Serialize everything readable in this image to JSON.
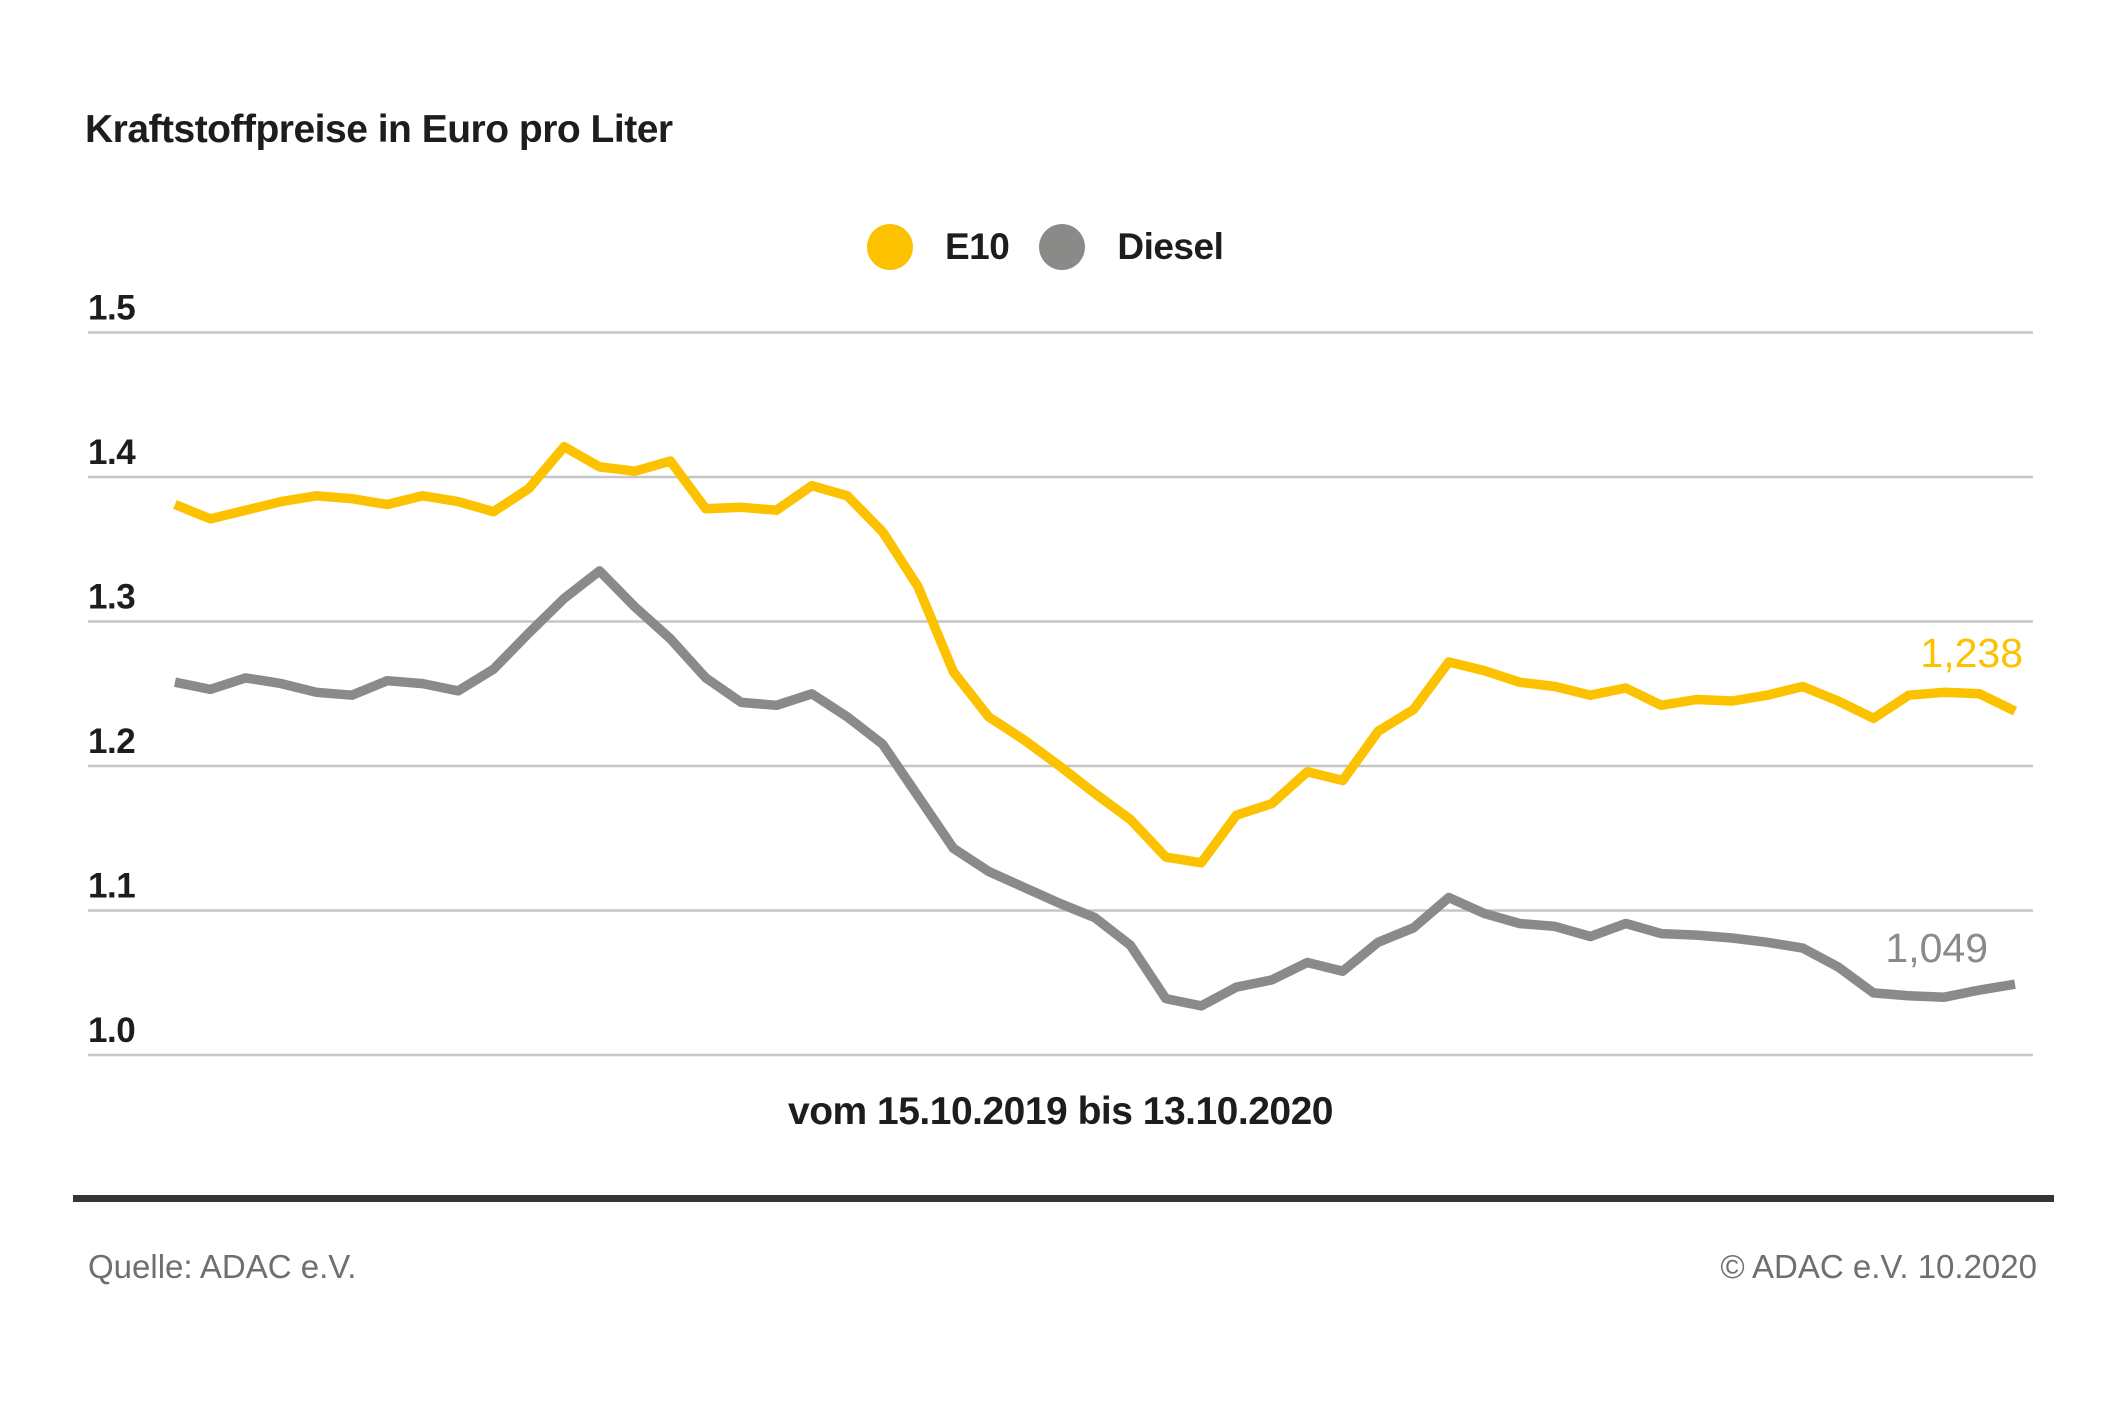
{
  "title": "Kraftstoffpreise in Euro pro Liter",
  "legend": [
    {
      "label": "E10",
      "color": "#fcc200"
    },
    {
      "label": "Diesel",
      "color": "#8a8a89"
    }
  ],
  "footer": {
    "source": "Quelle: ADAC e.V.",
    "copyright": "© ADAC e.V. 10.2020"
  },
  "chart_data": {
    "type": "line",
    "title": "Kraftstoffpreise in Euro pro Liter",
    "xlabel": "vom 15.10.2019 bis 13.10.2020",
    "ylabel": "Euro pro Liter",
    "ylim": [
      1.0,
      1.5
    ],
    "yticks": [
      1.0,
      1.1,
      1.2,
      1.3,
      1.4,
      1.5
    ],
    "ytick_labels": [
      "1.0",
      "1.1",
      "1.2",
      "1.3",
      "1.4",
      "1.5"
    ],
    "grid": "horizontal",
    "legend_position": "top-center",
    "x_start": "15.10.2019",
    "x_end": "13.10.2020",
    "x_interval": "weekly",
    "gridline_color": "#c6c6c6",
    "series": [
      {
        "name": "E10",
        "color": "#fcc200",
        "end_label": "1,238",
        "end_value": 1.238,
        "values": [
          1.381,
          1.371,
          1.377,
          1.383,
          1.387,
          1.385,
          1.381,
          1.387,
          1.383,
          1.376,
          1.392,
          1.421,
          1.407,
          1.404,
          1.411,
          1.378,
          1.379,
          1.377,
          1.394,
          1.387,
          1.362,
          1.324,
          1.265,
          1.234,
          1.218,
          1.2,
          1.181,
          1.163,
          1.137,
          1.133,
          1.166,
          1.174,
          1.196,
          1.19,
          1.224,
          1.239,
          1.272,
          1.266,
          1.258,
          1.255,
          1.249,
          1.254,
          1.242,
          1.246,
          1.245,
          1.249,
          1.255,
          1.245,
          1.233,
          1.249,
          1.251,
          1.25,
          1.238
        ]
      },
      {
        "name": "Diesel",
        "color": "#8a8a89",
        "end_label": "1,049",
        "end_value": 1.049,
        "values": [
          1.258,
          1.253,
          1.261,
          1.257,
          1.251,
          1.249,
          1.259,
          1.257,
          1.252,
          1.267,
          1.292,
          1.316,
          1.335,
          1.31,
          1.288,
          1.261,
          1.244,
          1.242,
          1.25,
          1.234,
          1.215,
          1.179,
          1.143,
          1.127,
          1.116,
          1.105,
          1.095,
          1.076,
          1.039,
          1.034,
          1.047,
          1.052,
          1.064,
          1.058,
          1.078,
          1.088,
          1.109,
          1.098,
          1.091,
          1.089,
          1.082,
          1.091,
          1.084,
          1.083,
          1.081,
          1.078,
          1.074,
          1.061,
          1.043,
          1.041,
          1.04,
          1.045,
          1.049
        ]
      }
    ]
  }
}
